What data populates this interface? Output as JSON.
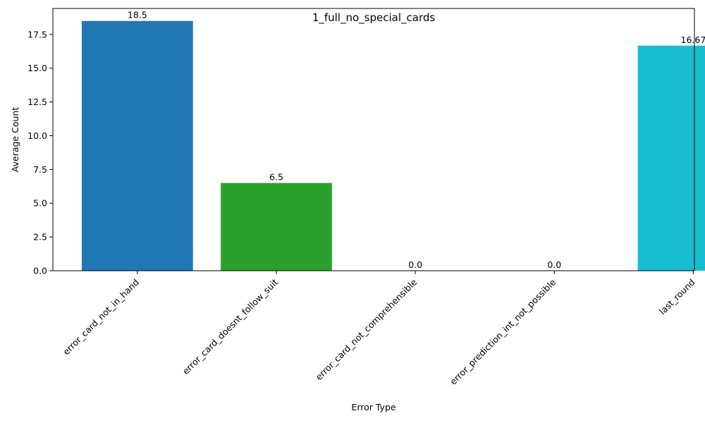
{
  "chart_data": {
    "type": "bar",
    "title": "1_full_no_special_cards",
    "xlabel": "Error Type",
    "ylabel": "Average Count",
    "categories": [
      "error_card_not_in_hand",
      "error_card_doesnt_follow_suit",
      "error_card_not_comprehensible",
      "error_prediction_int_not_possible",
      "last_round"
    ],
    "values": [
      18.5,
      6.5,
      0.0,
      0.0,
      16.67
    ],
    "value_labels": [
      "18.5",
      "6.5",
      "0.0",
      "0.0",
      "16.67"
    ],
    "colors": [
      "#1f77b4",
      "#2ca02c",
      "#7f7f7f",
      "#bcbd22",
      "#17becf"
    ],
    "ylim": [
      0,
      19.425
    ],
    "yticks": [
      0.0,
      2.5,
      5.0,
      7.5,
      10.0,
      12.5,
      15.0,
      17.5
    ],
    "ytick_labels": [
      "0.0",
      "2.5",
      "5.0",
      "7.5",
      "10.0",
      "12.5",
      "15.0",
      "17.5"
    ],
    "grid": false,
    "legend": "none"
  }
}
